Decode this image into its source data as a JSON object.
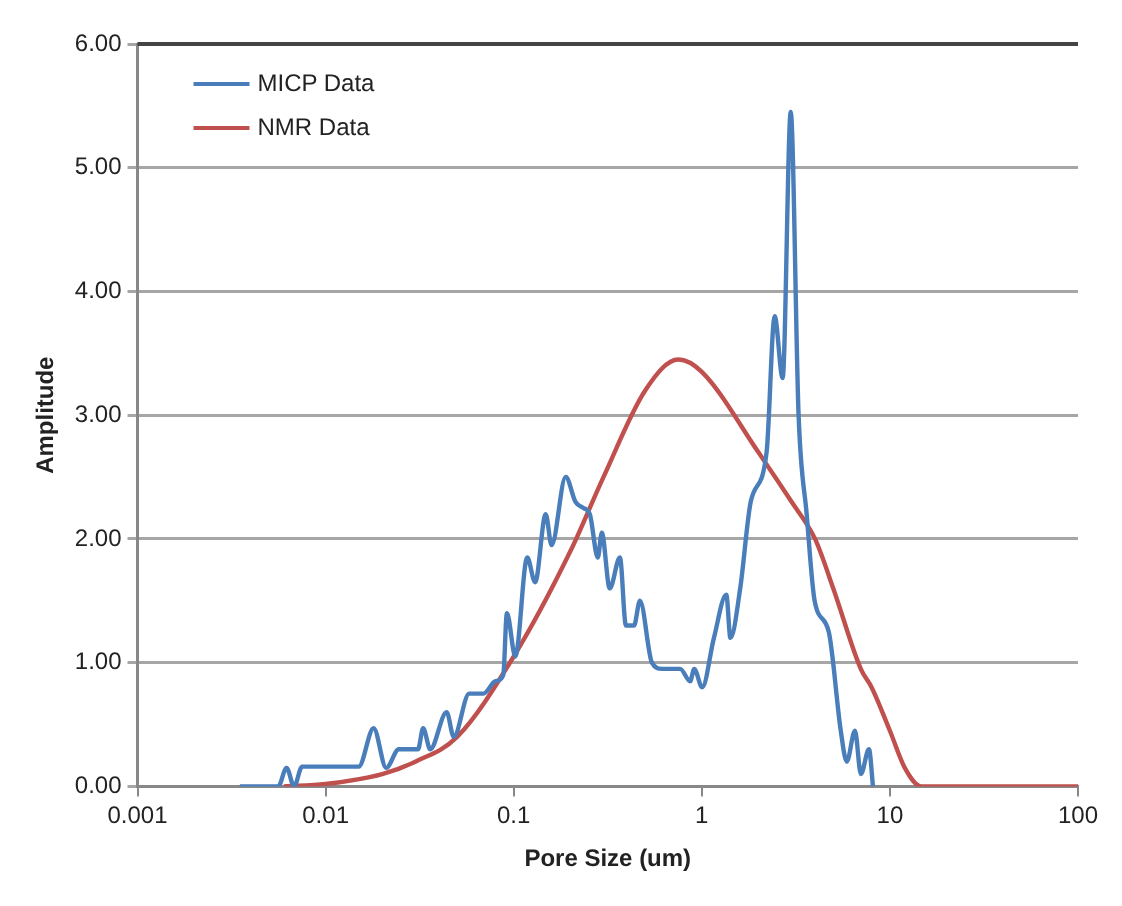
{
  "chart_data": {
    "type": "line",
    "xlabel": "Pore Size (um)",
    "ylabel": "Amplitude",
    "log": "x",
    "xlim": [
      0.001,
      100
    ],
    "xticks": [
      0.001,
      0.01,
      0.1,
      1,
      10,
      100
    ],
    "ylim": [
      0,
      6
    ],
    "yticks": [
      {
        "value": 0,
        "label": "0.00"
      },
      {
        "value": 1,
        "label": "1.00"
      },
      {
        "value": 2,
        "label": "2.00"
      },
      {
        "value": 3,
        "label": "3.00"
      },
      {
        "value": 4,
        "label": "4.00"
      },
      {
        "value": 5,
        "label": "5.00"
      },
      {
        "value": 6,
        "label": "6.00"
      }
    ],
    "grid": "y",
    "legend": "top left",
    "marker": "none",
    "line_style": "solid",
    "series": [
      {
        "name": "MICP Data",
        "color": "#4a7ebb",
        "x": [
          0.0035,
          0.0056,
          0.0062,
          0.0068,
          0.0075,
          0.015,
          0.018,
          0.021,
          0.0245,
          0.031,
          0.033,
          0.036,
          0.044,
          0.048,
          0.058,
          0.069,
          0.08,
          0.088,
          0.092,
          0.102,
          0.118,
          0.13,
          0.148,
          0.159,
          0.189,
          0.213,
          0.235,
          0.254,
          0.28,
          0.294,
          0.324,
          0.367,
          0.395,
          0.436,
          0.469,
          0.543,
          0.614,
          0.767,
          0.867,
          0.911,
          1.005,
          1.16,
          1.35,
          1.42,
          1.6,
          1.82,
          2.21,
          2.44,
          2.69,
          2.97,
          3.27,
          3.61,
          3.98,
          4.73,
          5.48,
          5.9,
          6.52,
          7.01,
          7.74,
          8.13
        ],
        "values": [
          0,
          0,
          0.15,
          0,
          0.16,
          0.16,
          0.47,
          0.15,
          0.3,
          0.3,
          0.47,
          0.3,
          0.6,
          0.4,
          0.75,
          0.75,
          0.85,
          0.9,
          1.4,
          1.05,
          1.85,
          1.65,
          2.2,
          1.95,
          2.5,
          2.3,
          2.25,
          2.2,
          1.85,
          2.05,
          1.6,
          1.85,
          1.3,
          1.3,
          1.5,
          1.0,
          0.95,
          0.95,
          0.85,
          0.95,
          0.8,
          1.2,
          1.55,
          1.2,
          1.6,
          2.3,
          2.7,
          3.8,
          3.3,
          5.45,
          3.0,
          2.2,
          1.5,
          1.25,
          0.45,
          0.2,
          0.45,
          0.1,
          0.3,
          0
        ]
      },
      {
        "name": "NMR Data",
        "color": "#c0504d",
        "x": [
          0.006,
          0.01,
          0.02,
          0.03,
          0.05,
          0.1,
          0.2,
          0.3,
          0.5,
          0.75,
          1,
          2,
          3,
          4,
          5,
          7,
          8,
          10,
          12,
          14.7,
          20,
          100
        ],
        "values": [
          0,
          0.02,
          0.1,
          0.2,
          0.4,
          1.05,
          1.9,
          2.5,
          3.2,
          3.45,
          3.35,
          2.7,
          2.3,
          2.0,
          1.6,
          0.95,
          0.8,
          0.45,
          0.15,
          0,
          0,
          0
        ]
      }
    ]
  }
}
